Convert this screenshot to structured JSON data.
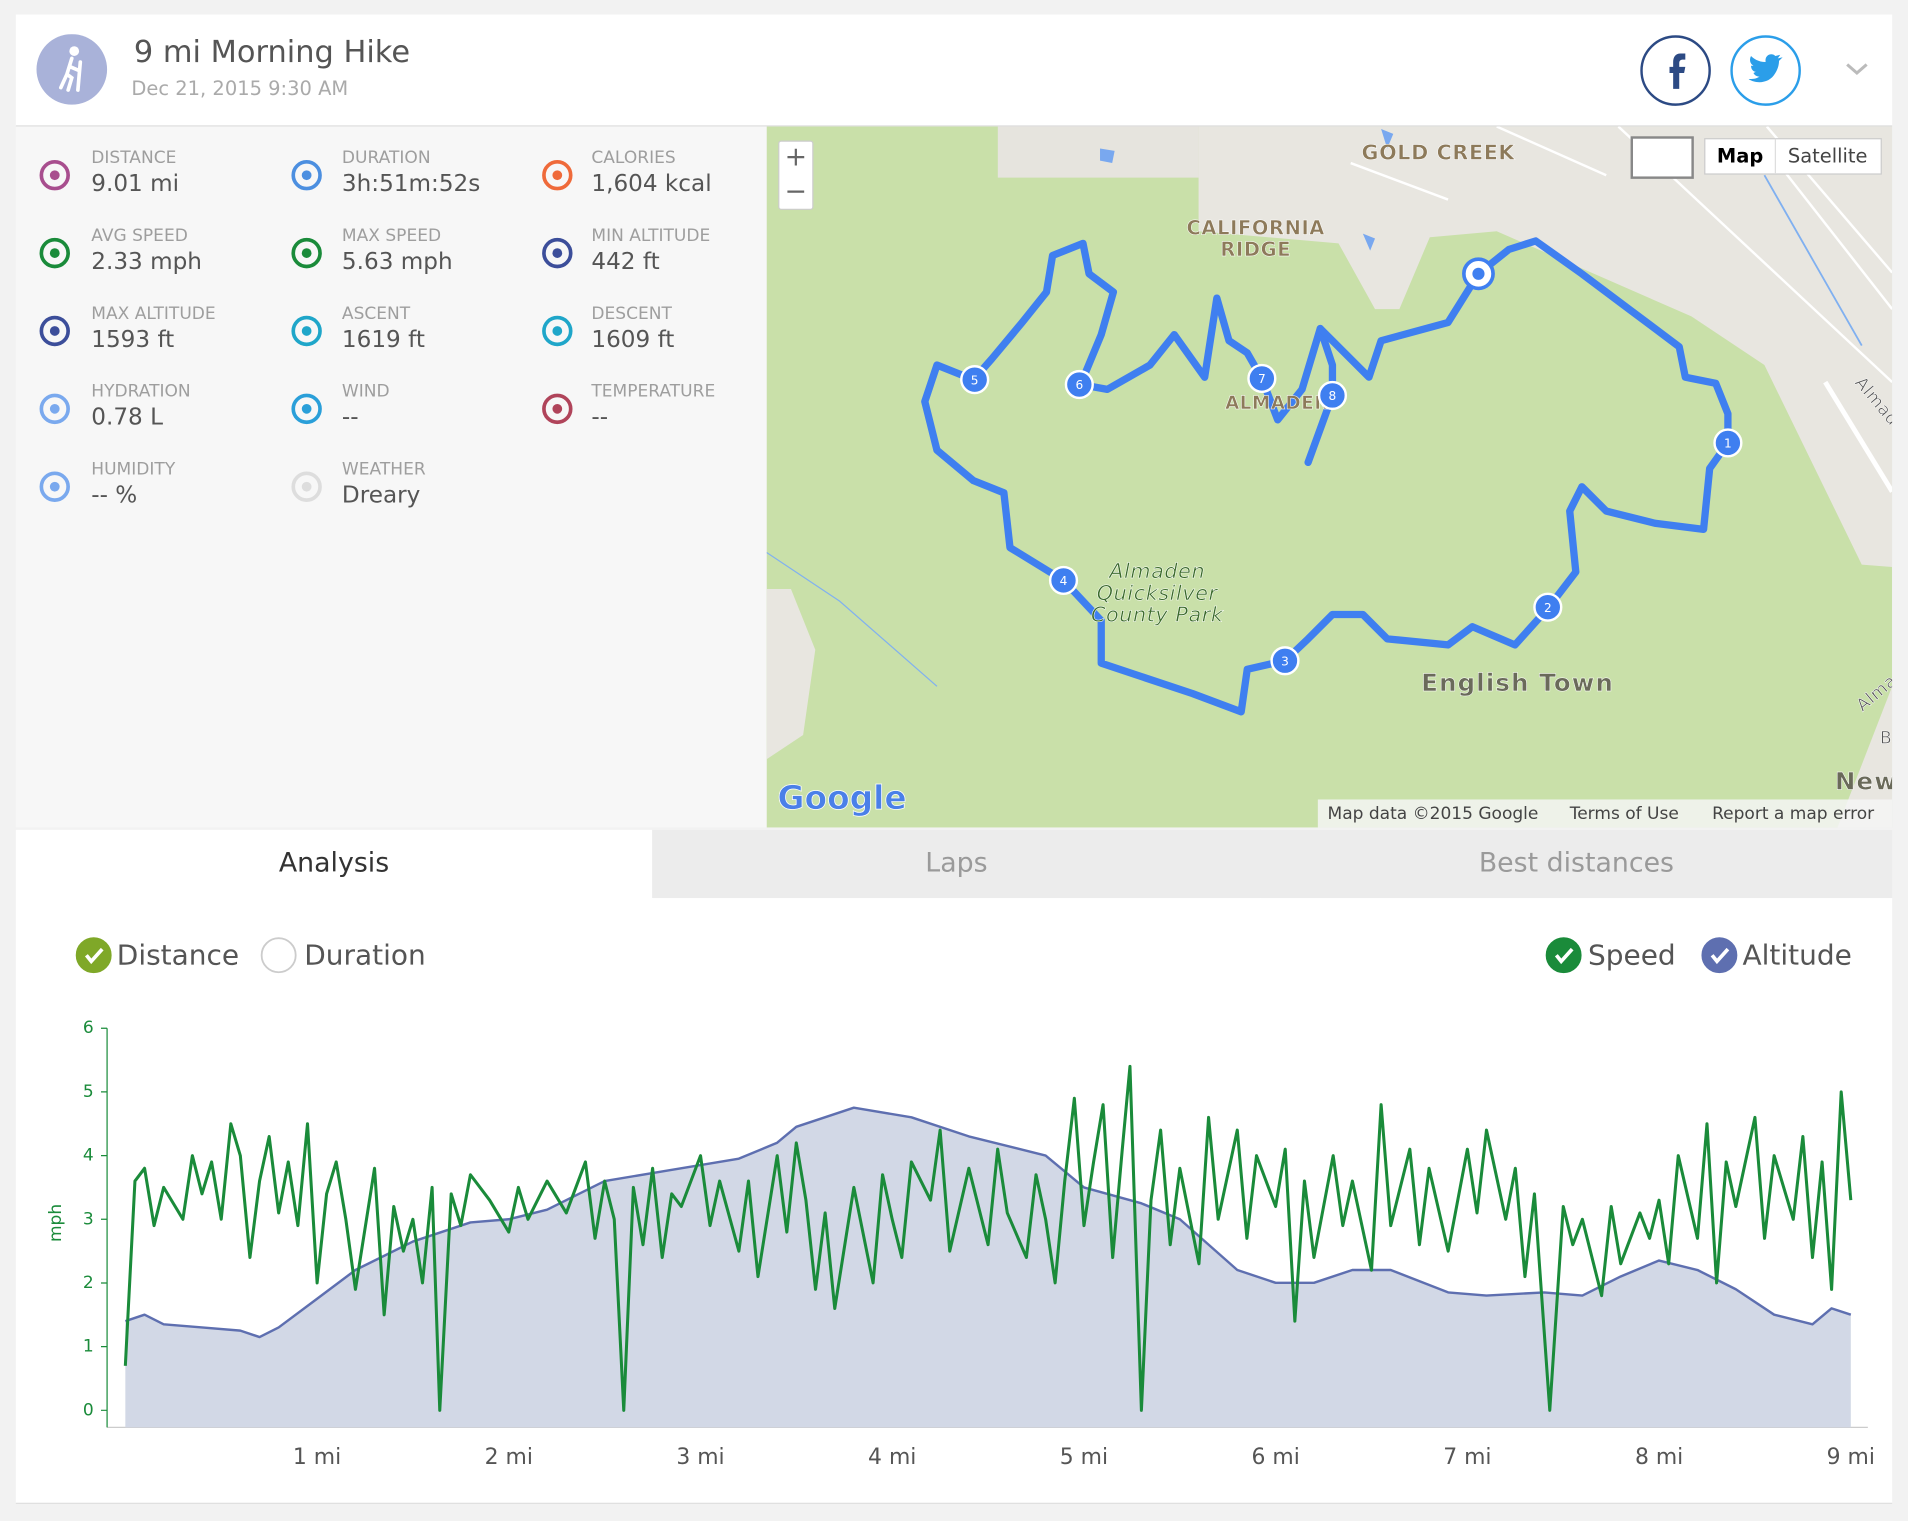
{
  "header": {
    "title": "9 mi Morning Hike",
    "date": "Dec 21, 2015 9:30 AM"
  },
  "stats": [
    {
      "label": "DISTANCE",
      "value": "9.01 mi"
    },
    {
      "label": "DURATION",
      "value": "3h:51m:52s"
    },
    {
      "label": "CALORIES",
      "value": "1,604 kcal"
    },
    {
      "label": "AVG SPEED",
      "value": "2.33 mph"
    },
    {
      "label": "MAX SPEED",
      "value": "5.63 mph"
    },
    {
      "label": "MIN ALTITUDE",
      "value": "442 ft"
    },
    {
      "label": "MAX ALTITUDE",
      "value": "1593 ft"
    },
    {
      "label": "ASCENT",
      "value": "1619 ft"
    },
    {
      "label": "DESCENT",
      "value": "1609 ft"
    },
    {
      "label": "HYDRATION",
      "value": "0.78 L"
    },
    {
      "label": "WIND",
      "value": "--"
    },
    {
      "label": "TEMPERATURE",
      "value": "--"
    },
    {
      "label": "HUMIDITY",
      "value": "-- %"
    },
    {
      "label": "WEATHER",
      "value": "Dreary"
    }
  ],
  "map": {
    "labels": [
      [
        "GOLD CREEK"
      ],
      [
        "CALIFORNIA",
        "RIDGE"
      ],
      [
        "ALMADEN"
      ],
      [
        "Almaden",
        "Quicksilver",
        "County Park"
      ],
      [
        "English Town"
      ],
      [
        "Almaden Rd"
      ],
      [
        "Almad"
      ],
      [
        "Be"
      ],
      [
        "New Alma"
      ]
    ],
    "markers": [
      "1",
      "2",
      "3",
      "4",
      "5",
      "6",
      "7",
      "8"
    ],
    "zoom_in": "+",
    "zoom_out": "−",
    "map_button": "Map",
    "satellite_button": "Satellite",
    "logo": "Google",
    "attribution": "Map data ©2015 Google",
    "terms": "Terms of Use",
    "report": "Report a map error"
  },
  "tabs": [
    "Analysis",
    "Laps",
    "Best distances"
  ],
  "x_toggles": [
    {
      "label": "Distance",
      "checked": true
    },
    {
      "label": "Duration",
      "checked": false
    }
  ],
  "chart_data": {
    "type": "line",
    "ylabel": "mph",
    "xlim": [
      0,
      9
    ],
    "ylim": [
      0,
      6
    ],
    "y2lim": [
      74,
      1992
    ],
    "yticks": [
      0,
      1,
      2,
      3,
      4,
      5,
      6
    ],
    "xticks": [
      {
        "value": 1,
        "label": "1 mi"
      },
      {
        "value": 2,
        "label": "2 mi"
      },
      {
        "value": 3,
        "label": "3 mi"
      },
      {
        "value": 4,
        "label": "4 mi"
      },
      {
        "value": 5,
        "label": "5 mi"
      },
      {
        "value": 6,
        "label": "6 mi"
      },
      {
        "value": 7,
        "label": "7 mi"
      },
      {
        "value": 8,
        "label": "8 mi"
      },
      {
        "value": 9,
        "label": "9 mi"
      }
    ],
    "series": [
      {
        "name": "Speed",
        "color": "#1a8b3a",
        "checked": true,
        "x": [
          0,
          0.05,
          0.1,
          0.15,
          0.2,
          0.3,
          0.35,
          0.4,
          0.45,
          0.5,
          0.55,
          0.6,
          0.65,
          0.7,
          0.75,
          0.8,
          0.85,
          0.9,
          0.95,
          1.0,
          1.05,
          1.1,
          1.15,
          1.2,
          1.3,
          1.35,
          1.4,
          1.45,
          1.5,
          1.55,
          1.6,
          1.64,
          1.7,
          1.75,
          1.8,
          1.9,
          2.0,
          2.05,
          2.1,
          2.2,
          2.3,
          2.4,
          2.45,
          2.5,
          2.55,
          2.6,
          2.65,
          2.7,
          2.75,
          2.8,
          2.85,
          2.9,
          3.0,
          3.05,
          3.1,
          3.2,
          3.25,
          3.3,
          3.4,
          3.45,
          3.5,
          3.55,
          3.6,
          3.65,
          3.7,
          3.8,
          3.9,
          3.95,
          4.0,
          4.05,
          4.1,
          4.2,
          4.25,
          4.3,
          4.4,
          4.5,
          4.55,
          4.6,
          4.7,
          4.75,
          4.8,
          4.85,
          4.9,
          4.95,
          5.0,
          5.05,
          5.1,
          5.15,
          5.2,
          5.24,
          5.3,
          5.35,
          5.4,
          5.45,
          5.5,
          5.6,
          5.65,
          5.7,
          5.8,
          5.85,
          5.9,
          6.0,
          6.05,
          6.1,
          6.15,
          6.2,
          6.3,
          6.35,
          6.4,
          6.5,
          6.55,
          6.6,
          6.7,
          6.75,
          6.8,
          6.9,
          7.0,
          7.05,
          7.1,
          7.2,
          7.25,
          7.3,
          7.35,
          7.43,
          7.5,
          7.55,
          7.6,
          7.7,
          7.75,
          7.8,
          7.9,
          7.95,
          8.0,
          8.05,
          8.1,
          8.2,
          8.25,
          8.3,
          8.35,
          8.4,
          8.5,
          8.55,
          8.6,
          8.7,
          8.75,
          8.8,
          8.85,
          8.9,
          8.95,
          9.0
        ],
        "values": [
          0.7,
          3.6,
          3.8,
          2.9,
          3.5,
          3.0,
          4.0,
          3.4,
          3.9,
          3.0,
          4.5,
          4.0,
          2.4,
          3.6,
          4.3,
          3.1,
          3.9,
          2.9,
          4.5,
          2.0,
          3.4,
          3.9,
          3.0,
          1.9,
          3.8,
          1.5,
          3.2,
          2.5,
          3.0,
          2.0,
          3.5,
          0.0,
          3.4,
          2.9,
          3.7,
          3.3,
          2.8,
          3.5,
          3.0,
          3.6,
          3.1,
          3.9,
          2.7,
          3.6,
          3.0,
          0.0,
          3.5,
          2.6,
          3.8,
          2.4,
          3.4,
          3.2,
          4.0,
          2.9,
          3.6,
          2.5,
          3.6,
          2.1,
          4.0,
          2.8,
          4.2,
          3.3,
          1.9,
          3.1,
          1.6,
          3.5,
          2.0,
          3.7,
          3.0,
          2.4,
          3.9,
          3.3,
          4.4,
          2.5,
          3.8,
          2.6,
          4.1,
          3.1,
          2.4,
          3.7,
          3.0,
          2.0,
          3.6,
          4.9,
          2.9,
          3.9,
          4.8,
          2.4,
          4.1,
          5.4,
          0.0,
          3.3,
          4.4,
          2.6,
          3.8,
          2.3,
          4.6,
          3.0,
          4.4,
          2.7,
          4.0,
          3.2,
          4.1,
          1.4,
          3.6,
          2.4,
          4.0,
          2.9,
          3.6,
          2.2,
          4.8,
          2.9,
          4.1,
          2.6,
          3.8,
          2.5,
          4.1,
          3.1,
          4.4,
          3.0,
          3.8,
          2.1,
          3.4,
          0.0,
          3.2,
          2.6,
          3.0,
          1.8,
          3.2,
          2.3,
          3.1,
          2.7,
          3.3,
          2.3,
          4.0,
          2.7,
          4.5,
          2.0,
          3.9,
          3.2,
          4.6,
          2.7,
          4.0,
          3.0,
          4.3,
          2.4,
          3.9,
          1.9,
          5.0,
          3.3
        ]
      },
      {
        "name": "Altitude",
        "color": "#5e6fb0",
        "fill": "#d2d8e6",
        "axis": "y2",
        "checked": true,
        "x": [
          0,
          0.1,
          0.2,
          0.4,
          0.6,
          0.7,
          0.8,
          1.0,
          1.2,
          1.5,
          1.8,
          2.0,
          2.2,
          2.5,
          2.8,
          3.2,
          3.4,
          3.5,
          3.8,
          4.1,
          4.4,
          4.8,
          5.0,
          5.3,
          5.5,
          5.8,
          6.0,
          6.2,
          6.4,
          6.6,
          6.9,
          7.1,
          7.4,
          7.6,
          7.8,
          8.0,
          8.2,
          8.4,
          8.6,
          8.8,
          8.9,
          9.0
        ],
        "values": [
          522,
          554,
          506,
          490,
          474,
          442,
          490,
          634,
          778,
          921,
          1017,
          1033,
          1081,
          1225,
          1273,
          1337,
          1417,
          1497,
          1593,
          1545,
          1449,
          1353,
          1193,
          1113,
          1033,
          778,
          714,
          714,
          778,
          778,
          666,
          650,
          666,
          650,
          746,
          826,
          778,
          682,
          554,
          506,
          586,
          554
        ]
      }
    ]
  }
}
